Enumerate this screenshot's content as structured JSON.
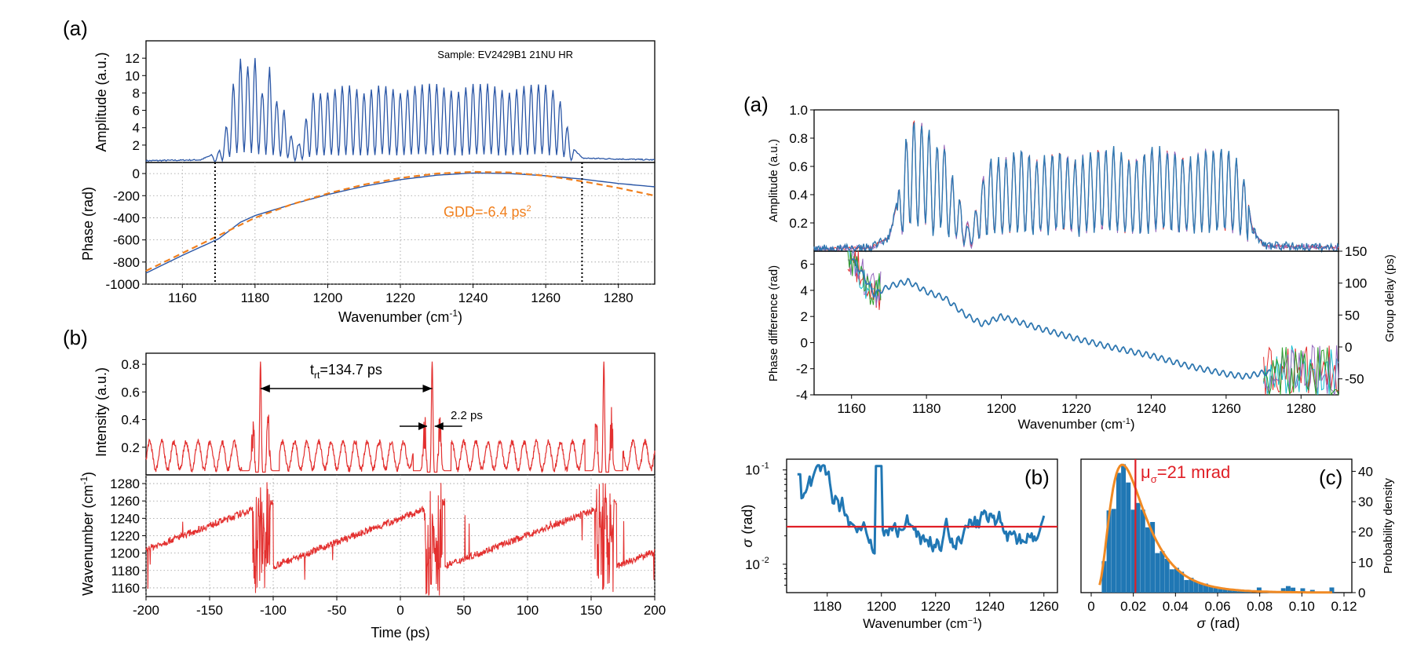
{
  "chart_data": [
    {
      "id": "left_a_top",
      "type": "line",
      "panel_label": "(a)",
      "annotation": "Sample: EV2429B1 21NU HR",
      "xlim": [
        1150,
        1290
      ],
      "ylim": [
        0,
        14
      ],
      "yticks": [
        "2",
        "4",
        "6",
        "8",
        "10",
        "12"
      ],
      "ylabel": "Amplitude (a.u.)",
      "colors": {
        "series": "#2a56a6"
      },
      "series": [
        {
          "x": [
            1150,
            1165,
            1170,
            1172,
            1174,
            1176,
            1178,
            1180,
            1182,
            1184,
            1186,
            1188,
            1190,
            1192,
            1194,
            1196,
            1200,
            1205,
            1210,
            1215,
            1220,
            1225,
            1230,
            1235,
            1240,
            1245,
            1250,
            1255,
            1260,
            1263,
            1265,
            1267,
            1270,
            1290
          ],
          "y": [
            0.2,
            0.3,
            1.2,
            4,
            9,
            12,
            11,
            12,
            8,
            11,
            7,
            6,
            3,
            2,
            5,
            8,
            8,
            9,
            8,
            9,
            8,
            9,
            9,
            8,
            9,
            9,
            8,
            9,
            9,
            8,
            6,
            2,
            0.5,
            0.3
          ]
        }
      ]
    },
    {
      "id": "left_a_bottom",
      "type": "line",
      "xlim": [
        1150,
        1290
      ],
      "ylim": [
        -1000,
        100
      ],
      "xticks": [
        "1160",
        "1180",
        "1200",
        "1220",
        "1240",
        "1260",
        "1280"
      ],
      "yticks": [
        "0",
        "-200",
        "-400",
        "-600",
        "-800",
        "-1000"
      ],
      "xlabel": "Wavenumber (cm",
      "xlabel_sup": "-1",
      "xlabel_end": ")",
      "ylabel": "Phase (rad)",
      "annotation_main": "GDD=-6.4 ps",
      "annotation_sup": "2",
      "vlines": [
        1169,
        1270
      ],
      "colors": {
        "measured": "#2a56a6",
        "fit": "#f07f1d",
        "annotation": "#f07f1d"
      },
      "series": [
        {
          "x": [
            1150,
            1160,
            1166,
            1170,
            1176,
            1180,
            1190,
            1200,
            1210,
            1220,
            1230,
            1240,
            1250,
            1260,
            1270,
            1280,
            1290
          ],
          "y": [
            -900,
            -740,
            -650,
            -590,
            -440,
            -380,
            -280,
            -190,
            -115,
            -55,
            -15,
            5,
            0,
            -20,
            -50,
            -90,
            -120
          ]
        },
        {
          "x": [
            1150,
            1160,
            1170,
            1180,
            1190,
            1200,
            1210,
            1220,
            1230,
            1240,
            1250,
            1260,
            1270,
            1280,
            1290
          ],
          "y": [
            -880,
            -720,
            -560,
            -400,
            -280,
            -180,
            -100,
            -40,
            0,
            15,
            10,
            -20,
            -70,
            -130,
            -200
          ]
        }
      ]
    },
    {
      "id": "left_b_top",
      "type": "line",
      "panel_label": "(b)",
      "xlim": [
        -200,
        200
      ],
      "ylim": [
        0,
        0.88
      ],
      "yticks": [
        "0.2",
        "0.4",
        "0.6",
        "0.8"
      ],
      "ylabel": "Intensity (a.u.)",
      "annotation_main": "t",
      "annotation_sub": "rt",
      "annotation_rest": "=134.7 ps",
      "pulse_label": "2.2 ps",
      "period_span": [
        -110,
        25
      ],
      "pulse_span": [
        21,
        27
      ],
      "peaks": [
        {
          "x": -110,
          "y": 0.82
        },
        {
          "x": 25,
          "y": 0.82
        },
        {
          "x": 160,
          "y": 0.82
        }
      ],
      "colors": {
        "series": "#e3302f"
      }
    },
    {
      "id": "left_b_bottom",
      "type": "line",
      "xlim": [
        -200,
        200
      ],
      "ylim": [
        1150,
        1290
      ],
      "xticks": [
        "-200",
        "-150",
        "-100",
        "-50",
        "0",
        "50",
        "100",
        "150",
        "200"
      ],
      "yticks": [
        "1160",
        "1180",
        "1200",
        "1220",
        "1240",
        "1260",
        "1280"
      ],
      "xlabel": "Time (ps)",
      "ylabel": "Wavenumber (cm",
      "ylabel_sup": "-1",
      "ylabel_end": ")",
      "colors": {
        "series": "#e3302f"
      }
    },
    {
      "id": "right_a_top",
      "type": "line",
      "panel_label": "(a)",
      "xlim": [
        1150,
        1290
      ],
      "ylim": [
        0,
        1.0
      ],
      "yticks": [
        "0.2",
        "0.4",
        "0.6",
        "0.8",
        "1.0"
      ],
      "ylabel": "Amplitude (a.u.)",
      "colors": {
        "series": "#2f77b0"
      }
    },
    {
      "id": "right_a_bottom",
      "type": "line",
      "xlim": [
        1150,
        1290
      ],
      "ylim": [
        -4,
        7
      ],
      "ylim_right": [
        -75,
        150
      ],
      "xticks": [
        "1160",
        "1180",
        "1200",
        "1220",
        "1240",
        "1260",
        "1280"
      ],
      "yticks": [
        "-4",
        "-2",
        "0",
        "2",
        "4",
        "6"
      ],
      "yticks_right": [
        "150",
        "100",
        "50",
        "0",
        "-50"
      ],
      "xlabel": "Wavenumber (cm",
      "xlabel_sup": "-1",
      "xlabel_end": ")",
      "ylabel": "Phase difference (rad)",
      "ylabel_right": "Group delay (ps)",
      "colors": {
        "series": "#2f77b0",
        "noise": [
          "#e3302f",
          "#17becf",
          "#9467bd",
          "#2ca02c"
        ]
      },
      "series": [
        {
          "x": [
            1160,
            1163,
            1166,
            1170,
            1175,
            1180,
            1185,
            1190,
            1195,
            1200,
            1210,
            1220,
            1230,
            1240,
            1250,
            1260,
            1265,
            1270
          ],
          "y": [
            6.5,
            5.2,
            3.7,
            4.3,
            4.7,
            3.9,
            3.4,
            2.2,
            1.4,
            2.0,
            1.1,
            0.3,
            -0.4,
            -1.0,
            -1.8,
            -2.4,
            -2.6,
            -2.3
          ]
        }
      ]
    },
    {
      "id": "right_b",
      "type": "line",
      "panel_label": "(b)",
      "xlim": [
        1165,
        1265
      ],
      "ylog": [
        0.005,
        0.13
      ],
      "xticks": [
        "1180",
        "1200",
        "1220",
        "1240",
        "1260"
      ],
      "yticks": [
        "10",
        "10"
      ],
      "ytick_exponents": [
        "-1",
        "-2"
      ],
      "xlabel": "Wavenumber (cm",
      "xlabel_sup": "−1",
      "xlabel_end": ")",
      "ylabel_sym": "σ",
      "ylabel_unit": "(rad)",
      "hline": 0.025,
      "colors": {
        "series": "#2077b4",
        "hline": "#e01f26"
      }
    },
    {
      "id": "right_c",
      "type": "bar",
      "panel_label": "(c)",
      "xlim": [
        0,
        0.12
      ],
      "ylim": [
        0,
        44
      ],
      "xticks": [
        "0",
        "0.02",
        "0.04",
        "0.06",
        "0.08",
        "0.10",
        "0.12"
      ],
      "yticks": [
        "0",
        "10",
        "20",
        "30",
        "40"
      ],
      "xlabel_sym": "σ",
      "xlabel_unit": "(rad)",
      "ylabel_right": "Probability density",
      "annotation_main": "μ",
      "annotation_sub": "σ",
      "annotation_rest": "=21 mrad",
      "vline": 0.021,
      "colors": {
        "bars": "#2077b4",
        "fit": "#f08a24",
        "vline": "#e01f26",
        "annotation": "#e01f26"
      }
    }
  ]
}
